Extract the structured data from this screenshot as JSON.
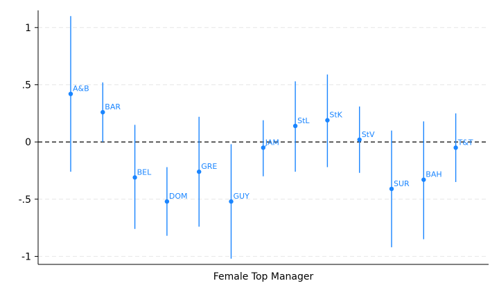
{
  "chart_data": {
    "type": "scatter",
    "xlabel": "Female Top Manager",
    "ylabel": "",
    "ylim": [
      -1.07,
      1.15
    ],
    "yticks": [
      {
        "value": 1,
        "label": "1"
      },
      {
        "value": 0.5,
        "label": ".5"
      },
      {
        "value": 0,
        "label": "0"
      },
      {
        "value": -0.5,
        "label": "-.5"
      },
      {
        "value": -1,
        "label": "-1"
      }
    ],
    "grid": true,
    "reference_line": 0,
    "colors": {
      "series": "#1a85ff",
      "grid": "#e6e6e6",
      "axis": "#000000"
    },
    "series": [
      {
        "label": "A&B",
        "estimate": 0.42,
        "lower": -0.26,
        "upper": 1.1
      },
      {
        "label": "BAR",
        "estimate": 0.26,
        "lower": 0.0,
        "upper": 0.52
      },
      {
        "label": "BEL",
        "estimate": -0.31,
        "lower": -0.76,
        "upper": 0.15
      },
      {
        "label": "DOM",
        "estimate": -0.52,
        "lower": -0.82,
        "upper": -0.22
      },
      {
        "label": "GRE",
        "estimate": -0.26,
        "lower": -0.74,
        "upper": 0.22
      },
      {
        "label": "GUY",
        "estimate": -0.52,
        "lower": -1.02,
        "upper": -0.02
      },
      {
        "label": "JAM",
        "estimate": -0.05,
        "lower": -0.3,
        "upper": 0.19
      },
      {
        "label": "StL",
        "estimate": 0.14,
        "lower": -0.26,
        "upper": 0.53
      },
      {
        "label": "StK",
        "estimate": 0.19,
        "lower": -0.22,
        "upper": 0.59
      },
      {
        "label": "StV",
        "estimate": 0.02,
        "lower": -0.27,
        "upper": 0.31
      },
      {
        "label": "SUR",
        "estimate": -0.41,
        "lower": -0.92,
        "upper": 0.1
      },
      {
        "label": "BAH",
        "estimate": -0.33,
        "lower": -0.85,
        "upper": 0.18
      },
      {
        "label": "T&T",
        "estimate": -0.05,
        "lower": -0.35,
        "upper": 0.25
      }
    ]
  }
}
